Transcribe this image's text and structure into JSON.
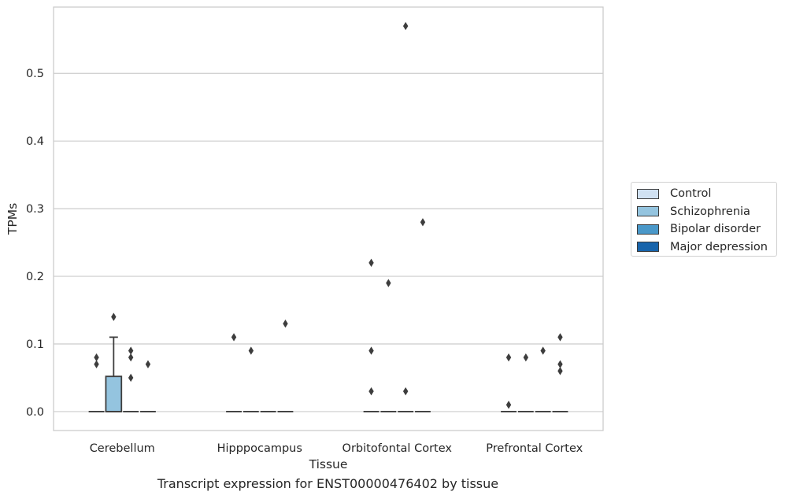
{
  "chart_data": {
    "type": "box",
    "title": "",
    "xlabel": "Tissue",
    "ylabel": "TPMs",
    "caption": "Transcript expression for ENST00000476402 by tissue",
    "categories": [
      "Cerebellum",
      "Hipppocampus",
      "Orbitofontal Cortex",
      "Prefrontal Cortex"
    ],
    "ylim": [
      -0.028,
      0.598
    ],
    "yticks": [
      0.0,
      0.1,
      0.2,
      0.3,
      0.4,
      0.5
    ],
    "ytick_labels": [
      "0.0",
      "0.1",
      "0.2",
      "0.3",
      "0.4",
      "0.5"
    ],
    "grid": true,
    "legend_position": "right-center",
    "series": [
      {
        "name": "Control",
        "color": "#d0e1f2",
        "boxes": [
          {
            "q1": 0,
            "median": 0,
            "q3": 0,
            "whislo": 0,
            "whishi": 0,
            "fliers": [
              0.08,
              0.07
            ]
          },
          {
            "q1": 0,
            "median": 0,
            "q3": 0,
            "whislo": 0,
            "whishi": 0,
            "fliers": [
              0.11
            ]
          },
          {
            "q1": 0,
            "median": 0,
            "q3": 0,
            "whislo": 0,
            "whishi": 0,
            "fliers": [
              0.22,
              0.09,
              0.03
            ]
          },
          {
            "q1": 0,
            "median": 0,
            "q3": 0,
            "whislo": 0,
            "whishi": 0,
            "fliers": [
              0.08,
              0.01
            ]
          }
        ]
      },
      {
        "name": "Schizophrenia",
        "color": "#94c4df",
        "boxes": [
          {
            "q1": 0,
            "median": 0,
            "q3": 0.052,
            "whislo": 0,
            "whishi": 0.11,
            "fliers": [
              0.14
            ]
          },
          {
            "q1": 0,
            "median": 0,
            "q3": 0,
            "whislo": 0,
            "whishi": 0,
            "fliers": [
              0.09
            ]
          },
          {
            "q1": 0,
            "median": 0,
            "q3": 0,
            "whislo": 0,
            "whishi": 0,
            "fliers": [
              0.19
            ]
          },
          {
            "q1": 0,
            "median": 0,
            "q3": 0,
            "whislo": 0,
            "whishi": 0,
            "fliers": [
              0.08
            ]
          }
        ]
      },
      {
        "name": "Bipolar disorder",
        "color": "#4a98c9",
        "boxes": [
          {
            "q1": 0,
            "median": 0,
            "q3": 0,
            "whislo": 0,
            "whishi": 0,
            "fliers": [
              0.09,
              0.08,
              0.05
            ]
          },
          {
            "q1": 0,
            "median": 0,
            "q3": 0,
            "whislo": 0,
            "whishi": 0,
            "fliers": []
          },
          {
            "q1": 0,
            "median": 0,
            "q3": 0,
            "whislo": 0,
            "whishi": 0,
            "fliers": [
              0.57,
              0.03
            ]
          },
          {
            "q1": 0,
            "median": 0,
            "q3": 0,
            "whislo": 0,
            "whishi": 0,
            "fliers": [
              0.09
            ]
          }
        ]
      },
      {
        "name": "Major depression",
        "color": "#1764ab",
        "boxes": [
          {
            "q1": 0,
            "median": 0,
            "q3": 0,
            "whislo": 0,
            "whishi": 0,
            "fliers": [
              0.07
            ]
          },
          {
            "q1": 0,
            "median": 0,
            "q3": 0,
            "whislo": 0,
            "whishi": 0,
            "fliers": [
              0.13
            ]
          },
          {
            "q1": 0,
            "median": 0,
            "q3": 0,
            "whislo": 0,
            "whishi": 0,
            "fliers": [
              0.28
            ]
          },
          {
            "q1": 0,
            "median": 0,
            "q3": 0,
            "whislo": 0,
            "whishi": 0,
            "fliers": [
              0.11,
              0.07,
              0.06
            ]
          }
        ]
      }
    ]
  }
}
